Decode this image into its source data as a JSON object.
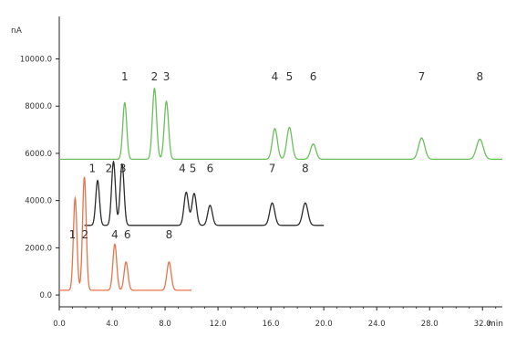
{
  "chart_data": {
    "type": "line",
    "title": "",
    "xlabel": "min",
    "ylabel": "nA",
    "xlim": [
      0,
      33.5
    ],
    "ylim": [
      -500,
      11800
    ],
    "x_ticks": [
      0,
      4,
      8,
      12,
      16,
      20,
      24,
      28,
      32
    ],
    "x_tick_labels": [
      "0.0",
      "4.0",
      "8.0",
      "12.0",
      "16.0",
      "20.0",
      "24.0",
      "28.0",
      "32.0"
    ],
    "y_ticks": [
      0,
      2000,
      4000,
      6000,
      8000,
      10000
    ],
    "y_tick_labels": [
      "0.0",
      "2000.0",
      "4000.0",
      "6000.0",
      "8000.0",
      "10000.0"
    ],
    "grid": false,
    "legend": "none",
    "series": [
      {
        "color": "#6abf5c",
        "baseline": 5750,
        "x_range": [
          0,
          33.5
        ],
        "peaks": [
          {
            "x": 4.95,
            "height": 2400,
            "label": "1"
          },
          {
            "x": 7.2,
            "height": 3000,
            "label": "2"
          },
          {
            "x": 8.1,
            "height": 2450,
            "label": "3"
          },
          {
            "x": 16.3,
            "height": 1300,
            "label": "4"
          },
          {
            "x": 17.4,
            "height": 1350,
            "label": "5"
          },
          {
            "x": 19.2,
            "height": 650,
            "label": "6"
          },
          {
            "x": 27.4,
            "height": 900,
            "label": "7"
          },
          {
            "x": 31.8,
            "height": 850,
            "label": "8"
          }
        ]
      },
      {
        "color": "#2b2b2b",
        "baseline": 2950,
        "x_range": [
          1.9,
          20.0
        ],
        "peaks": [
          {
            "x": 2.9,
            "height": 1900,
            "label": "1"
          },
          {
            "x": 4.1,
            "height": 2700,
            "label": "2"
          },
          {
            "x": 4.75,
            "height": 2600,
            "label": "3"
          },
          {
            "x": 9.6,
            "height": 1400,
            "label": "4"
          },
          {
            "x": 10.2,
            "height": 1350,
            "label": "5"
          },
          {
            "x": 11.4,
            "height": 850,
            "label": "6"
          },
          {
            "x": 16.1,
            "height": 950,
            "label": "7"
          },
          {
            "x": 18.6,
            "height": 950,
            "label": "8"
          }
        ]
      },
      {
        "color": "#e8734a",
        "baseline": 200,
        "x_range": [
          0,
          10.0
        ],
        "peaks": [
          {
            "x": 1.2,
            "height": 3900,
            "label": "1"
          },
          {
            "x": 1.9,
            "height": 4800,
            "label": "2"
          },
          {
            "x": 4.2,
            "height": 1950,
            "label": "4"
          },
          {
            "x": 5.05,
            "height": 1200,
            "label": "6"
          },
          {
            "x": 8.3,
            "height": 1200,
            "label": "8"
          }
        ]
      }
    ],
    "peak_labels": [
      {
        "series": 0,
        "x": 4.95,
        "y": 9100,
        "text": "1"
      },
      {
        "series": 0,
        "x": 7.2,
        "y": 9100,
        "text": "2"
      },
      {
        "series": 0,
        "x": 8.1,
        "y": 9100,
        "text": "3"
      },
      {
        "series": 0,
        "x": 16.3,
        "y": 9100,
        "text": "4"
      },
      {
        "series": 0,
        "x": 17.4,
        "y": 9100,
        "text": "5"
      },
      {
        "series": 0,
        "x": 19.2,
        "y": 9100,
        "text": "6"
      },
      {
        "series": 0,
        "x": 27.4,
        "y": 9100,
        "text": "7"
      },
      {
        "series": 0,
        "x": 31.8,
        "y": 9100,
        "text": "8"
      },
      {
        "series": 1,
        "x": 2.5,
        "y": 5200,
        "text": "1"
      },
      {
        "series": 1,
        "x": 3.75,
        "y": 5200,
        "text": "2"
      },
      {
        "series": 1,
        "x": 4.8,
        "y": 5200,
        "text": "3"
      },
      {
        "series": 1,
        "x": 9.3,
        "y": 5200,
        "text": "4"
      },
      {
        "series": 1,
        "x": 10.1,
        "y": 5200,
        "text": "5"
      },
      {
        "series": 1,
        "x": 11.4,
        "y": 5200,
        "text": "6"
      },
      {
        "series": 1,
        "x": 16.1,
        "y": 5200,
        "text": "7"
      },
      {
        "series": 1,
        "x": 18.6,
        "y": 5200,
        "text": "8"
      },
      {
        "series": 2,
        "x": 1.0,
        "y": 2400,
        "text": "1"
      },
      {
        "series": 2,
        "x": 1.95,
        "y": 2400,
        "text": "2"
      },
      {
        "series": 2,
        "x": 4.2,
        "y": 2400,
        "text": "4"
      },
      {
        "series": 2,
        "x": 5.15,
        "y": 2400,
        "text": "6"
      },
      {
        "series": 2,
        "x": 8.3,
        "y": 2400,
        "text": "8"
      }
    ]
  }
}
